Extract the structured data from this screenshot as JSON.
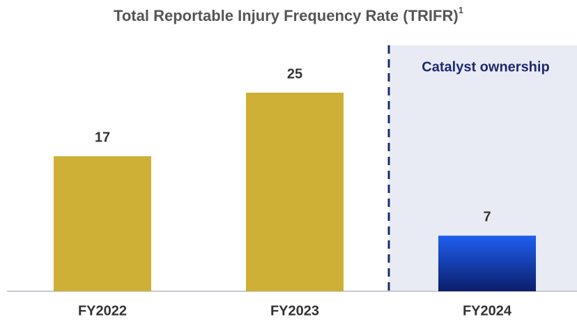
{
  "chart_data": {
    "type": "bar",
    "title": "Total Reportable Injury Frequency Rate (TRIFR)",
    "title_footnote": "1",
    "annotation": "Catalyst ownership",
    "categories": [
      "FY2022",
      "FY2023",
      "FY2024"
    ],
    "values": [
      17,
      25,
      7
    ],
    "colors": [
      "#cdb035",
      "#cdb035",
      "#1f5ff0"
    ],
    "gradient_end_color": "#0b1e6b",
    "highlight_color": "#1c2a6e"
  }
}
